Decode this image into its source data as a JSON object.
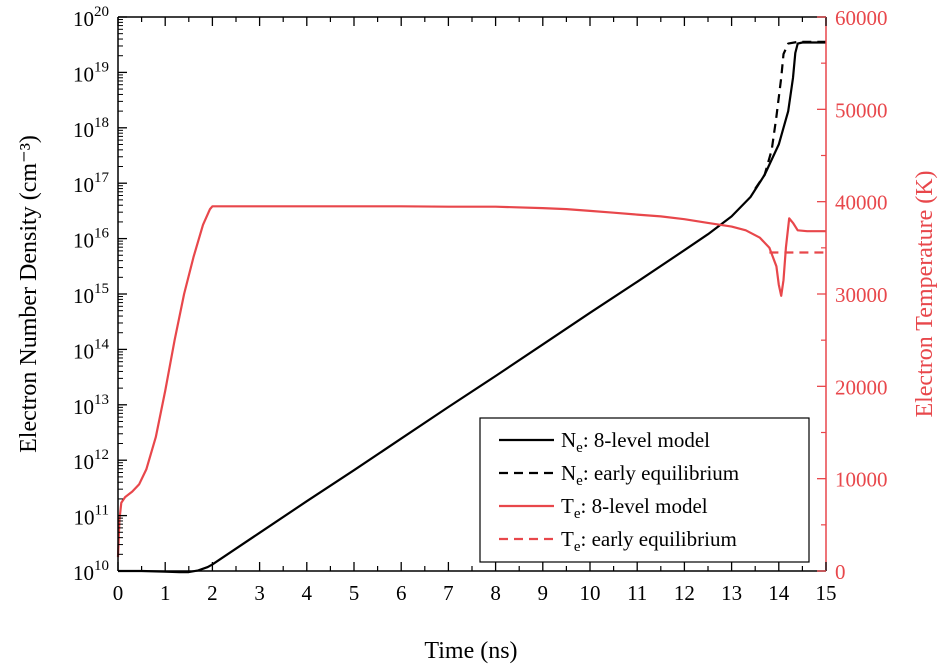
{
  "chart_data": {
    "type": "line",
    "title": "",
    "xlabel": "Time (ns)",
    "ylabel_left": "Electron Number Density (cm⁻³)",
    "ylabel_right": "Electron Temperature (K)",
    "xlim": [
      0,
      15
    ],
    "ylim_left_log10": [
      10,
      20
    ],
    "ylim_right": [
      0,
      60000
    ],
    "left_scale": "log",
    "grid": false,
    "legend_position": "bottom-right",
    "x_ticks": [
      "0",
      "1",
      "2",
      "3",
      "4",
      "5",
      "6",
      "7",
      "8",
      "9",
      "10",
      "11",
      "12",
      "13",
      "14",
      "15"
    ],
    "left_ticks": [
      {
        "base": "10",
        "exp": "10"
      },
      {
        "base": "10",
        "exp": "11"
      },
      {
        "base": "10",
        "exp": "12"
      },
      {
        "base": "10",
        "exp": "13"
      },
      {
        "base": "10",
        "exp": "14"
      },
      {
        "base": "10",
        "exp": "15"
      },
      {
        "base": "10",
        "exp": "16"
      },
      {
        "base": "10",
        "exp": "17"
      },
      {
        "base": "10",
        "exp": "18"
      },
      {
        "base": "10",
        "exp": "19"
      },
      {
        "base": "10",
        "exp": "20"
      }
    ],
    "right_ticks": [
      "0",
      "10000",
      "20000",
      "30000",
      "40000",
      "50000",
      "60000"
    ],
    "colors": {
      "ne": "#000000",
      "te": "#e8474b",
      "right_axis": "#e8474b"
    },
    "series": [
      {
        "name": "Nₑ: 8-level model",
        "axis": "left",
        "style": "solid",
        "color": "#000000",
        "x": [
          0,
          0.5,
          1.0,
          1.3,
          1.5,
          1.7,
          1.9,
          2.0,
          3,
          4,
          5,
          6,
          7,
          8,
          9,
          10,
          11,
          12,
          12.5,
          13,
          13.4,
          13.7,
          14.0,
          14.2,
          14.3,
          14.35,
          14.4,
          14.5,
          15
        ],
        "log10y": [
          10.0,
          10.0,
          9.99,
          9.98,
          9.98,
          10.01,
          10.07,
          10.12,
          10.69,
          11.26,
          11.82,
          12.39,
          12.96,
          13.52,
          14.09,
          14.66,
          15.22,
          15.79,
          16.08,
          16.4,
          16.75,
          17.15,
          17.7,
          18.3,
          18.9,
          19.35,
          19.52,
          19.54,
          19.54
        ]
      },
      {
        "name": "Nₑ: early equilibrium",
        "axis": "left",
        "style": "dashed",
        "color": "#000000",
        "x": [
          13.5,
          13.7,
          13.85,
          13.95,
          14.05,
          14.1,
          14.2,
          14.4,
          14.6,
          15
        ],
        "log10y": [
          16.9,
          17.15,
          17.6,
          18.2,
          18.9,
          19.33,
          19.52,
          19.55,
          19.55,
          19.55
        ]
      },
      {
        "name": "Tₑ: 8-level model",
        "axis": "right",
        "style": "solid",
        "color": "#e8474b",
        "x": [
          0,
          0.03,
          0.07,
          0.15,
          0.3,
          0.45,
          0.6,
          0.8,
          1.0,
          1.2,
          1.4,
          1.6,
          1.8,
          1.95,
          2.0,
          3,
          4,
          5,
          6,
          7,
          8,
          9,
          9.5,
          10,
          10.5,
          11,
          11.5,
          12,
          12.5,
          13,
          13.3,
          13.6,
          13.8,
          13.95,
          14.0,
          14.05,
          14.1,
          14.15,
          14.22,
          14.3,
          14.4,
          14.6,
          15
        ],
        "y": [
          1500,
          5500,
          7400,
          8000,
          8600,
          9400,
          11000,
          14500,
          19500,
          25000,
          30000,
          34000,
          37500,
          39200,
          39500,
          39500,
          39500,
          39500,
          39500,
          39450,
          39450,
          39300,
          39200,
          39000,
          38800,
          38600,
          38400,
          38100,
          37700,
          37300,
          36900,
          36100,
          35000,
          33000,
          31000,
          29800,
          31500,
          35000,
          38200,
          37700,
          36900,
          36800,
          36800
        ]
      },
      {
        "name": "Tₑ: early equilibrium",
        "axis": "right",
        "style": "dashed",
        "color": "#e8474b",
        "x": [
          13.8,
          14.2,
          14.6,
          15
        ],
        "y": [
          34500,
          34500,
          34500,
          34500
        ]
      }
    ],
    "legend": [
      {
        "sym": "N",
        "sub": "e",
        "rest": ": 8-level model",
        "color": "#000000",
        "style": "solid"
      },
      {
        "sym": "N",
        "sub": "e",
        "rest": ": early equilibrium",
        "color": "#000000",
        "style": "dashed"
      },
      {
        "sym": "T",
        "sub": "e",
        "rest": ": 8-level model",
        "color": "#e8474b",
        "style": "solid"
      },
      {
        "sym": "T",
        "sub": "e",
        "rest": ": early equilibrium",
        "color": "#e8474b",
        "style": "dashed"
      }
    ]
  }
}
